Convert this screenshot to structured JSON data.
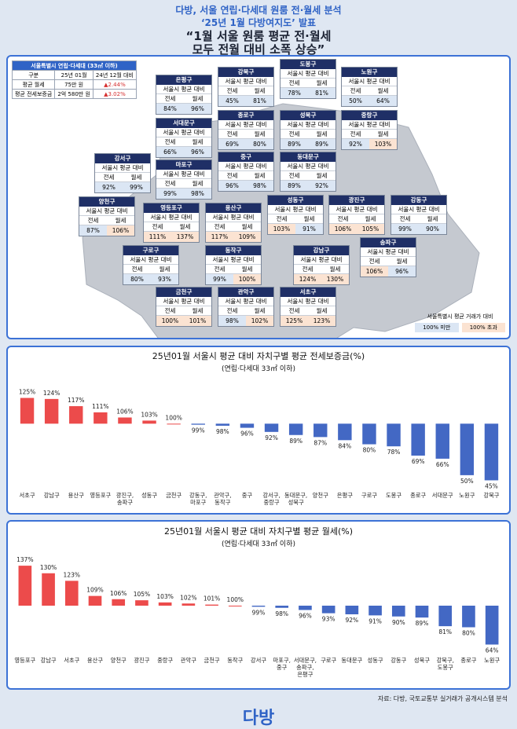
{
  "header": {
    "lines": [
      "다방, 서울 연립·다세대 원룸 전·월세 분석",
      "‘25년 1월 다방여지도’ 발표",
      "“1월 서울 원룸 평균 전·월세",
      "모두 전월 대비 소폭 상승”"
    ]
  },
  "summary": {
    "title": "서울특별시 연립·다세대 (33㎡ 이하)",
    "header": [
      "구분",
      "25년 01월",
      "24년 12월 대비"
    ],
    "rows": [
      [
        "평균 월세",
        "75만 원",
        "▲2.44%"
      ],
      [
        "평균 전세보증금",
        "2억 580만 원",
        "▲3.02%"
      ]
    ]
  },
  "map": {
    "subtitle": "서울시 평균 대비",
    "col_labels": [
      "전세",
      "월세"
    ],
    "districts": [
      {
        "name": "은평구",
        "values": [
          "84%",
          "96%"
        ]
      },
      {
        "name": "강북구",
        "values": [
          "45%",
          "81%"
        ]
      },
      {
        "name": "도봉구",
        "values": [
          "78%",
          "81%"
        ]
      },
      {
        "name": "노원구",
        "values": [
          "50%",
          "64%"
        ]
      },
      {
        "name": "서대문구",
        "values": [
          "66%",
          "96%"
        ]
      },
      {
        "name": "종로구",
        "values": [
          "69%",
          "80%"
        ]
      },
      {
        "name": "성북구",
        "values": [
          "89%",
          "89%"
        ]
      },
      {
        "name": "중랑구",
        "values": [
          "92%",
          "103%"
        ]
      },
      {
        "name": "강서구",
        "values": [
          "92%",
          "99%"
        ]
      },
      {
        "name": "마포구",
        "values": [
          "99%",
          "98%"
        ]
      },
      {
        "name": "중구",
        "values": [
          "96%",
          "98%"
        ]
      },
      {
        "name": "동대문구",
        "values": [
          "89%",
          "92%"
        ]
      },
      {
        "name": "양천구",
        "values": [
          "87%",
          "106%"
        ]
      },
      {
        "name": "영등포구",
        "values": [
          "111%",
          "137%"
        ]
      },
      {
        "name": "용산구",
        "values": [
          "117%",
          "109%"
        ]
      },
      {
        "name": "성동구",
        "values": [
          "103%",
          "91%"
        ]
      },
      {
        "name": "광진구",
        "values": [
          "106%",
          "105%"
        ]
      },
      {
        "name": "강동구",
        "values": [
          "99%",
          "90%"
        ]
      },
      {
        "name": "구로구",
        "values": [
          "80%",
          "93%"
        ]
      },
      {
        "name": "동작구",
        "values": [
          "99%",
          "100%"
        ]
      },
      {
        "name": "강남구",
        "values": [
          "124%",
          "130%"
        ]
      },
      {
        "name": "송파구",
        "values": [
          "106%",
          "96%"
        ]
      },
      {
        "name": "금천구",
        "values": [
          "100%",
          "101%"
        ]
      },
      {
        "name": "관악구",
        "values": [
          "98%",
          "102%"
        ]
      },
      {
        "name": "서초구",
        "values": [
          "125%",
          "123%"
        ]
      }
    ],
    "legend": {
      "title": "서울특별시 평균 거래가 대비",
      "below": "100% 미만",
      "above": "100% 초과",
      "below_color": "#dbe6f4",
      "above_color": "#fbe3d2"
    }
  },
  "chart_data": [
    {
      "type": "bar",
      "title": "25년01월 서울시 평균 대비 자치구별 평균 전세보증금(%)",
      "subtitle": "(연립·다세대 33㎡ 이하)",
      "categories": [
        "서초구",
        "강남구",
        "용산구",
        "영등포구",
        "광진구, 송파구",
        "성동구",
        "금천구",
        "강동구, 마포구",
        "관악구, 동작구",
        "중구",
        "강서구, 중랑구",
        "동대문구, 성북구",
        "양천구",
        "은평구",
        "구로구",
        "도봉구",
        "종로구",
        "서대문구",
        "노원구",
        "강북구"
      ],
      "values": [
        125,
        124,
        117,
        111,
        106,
        103,
        100,
        99,
        98,
        96,
        92,
        89,
        87,
        84,
        80,
        78,
        69,
        66,
        50,
        45
      ],
      "value_labels": [
        "125%",
        "124%",
        "117%",
        "111%",
        "106%",
        "103%",
        "100%",
        "99%",
        "98%",
        "96%",
        "92%",
        "89%",
        "87%",
        "84%",
        "80%",
        "78%",
        "69%",
        "66%",
        "50%",
        "45%"
      ],
      "baseline": 100,
      "ylim": [
        40,
        130
      ],
      "color_above": "#ec4b4b",
      "color_below": "#4368c4"
    },
    {
      "type": "bar",
      "title": "25년01월 서울시 평균 대비 자치구별 평균 월세(%)",
      "subtitle": "(연립·다세대 33㎡ 이하)",
      "categories": [
        "영등포구",
        "강남구",
        "서초구",
        "용산구",
        "양천구",
        "광진구",
        "중랑구",
        "관악구",
        "금천구",
        "동작구",
        "강서구",
        "마포구, 중구",
        "서대문구, 송파구, 은평구",
        "구로구",
        "동대문구",
        "성동구",
        "강동구",
        "성북구",
        "강북구, 도봉구",
        "종로구",
        "노원구"
      ],
      "values": [
        137,
        130,
        123,
        109,
        106,
        105,
        103,
        102,
        101,
        100,
        99,
        98,
        96,
        93,
        92,
        91,
        90,
        89,
        81,
        80,
        64
      ],
      "value_labels": [
        "137%",
        "130%",
        "123%",
        "109%",
        "106%",
        "105%",
        "103%",
        "102%",
        "101%",
        "100%",
        "99%",
        "98%",
        "96%",
        "93%",
        "92%",
        "91%",
        "90%",
        "89%",
        "81%",
        "80%",
        "64%"
      ],
      "baseline": 100,
      "ylim": [
        60,
        140
      ],
      "color_above": "#ec4b4b",
      "color_below": "#4368c4"
    }
  ],
  "source": "자료: 다방, 국토교통부 실거래가 공개시스템 분석",
  "logo": "다방"
}
